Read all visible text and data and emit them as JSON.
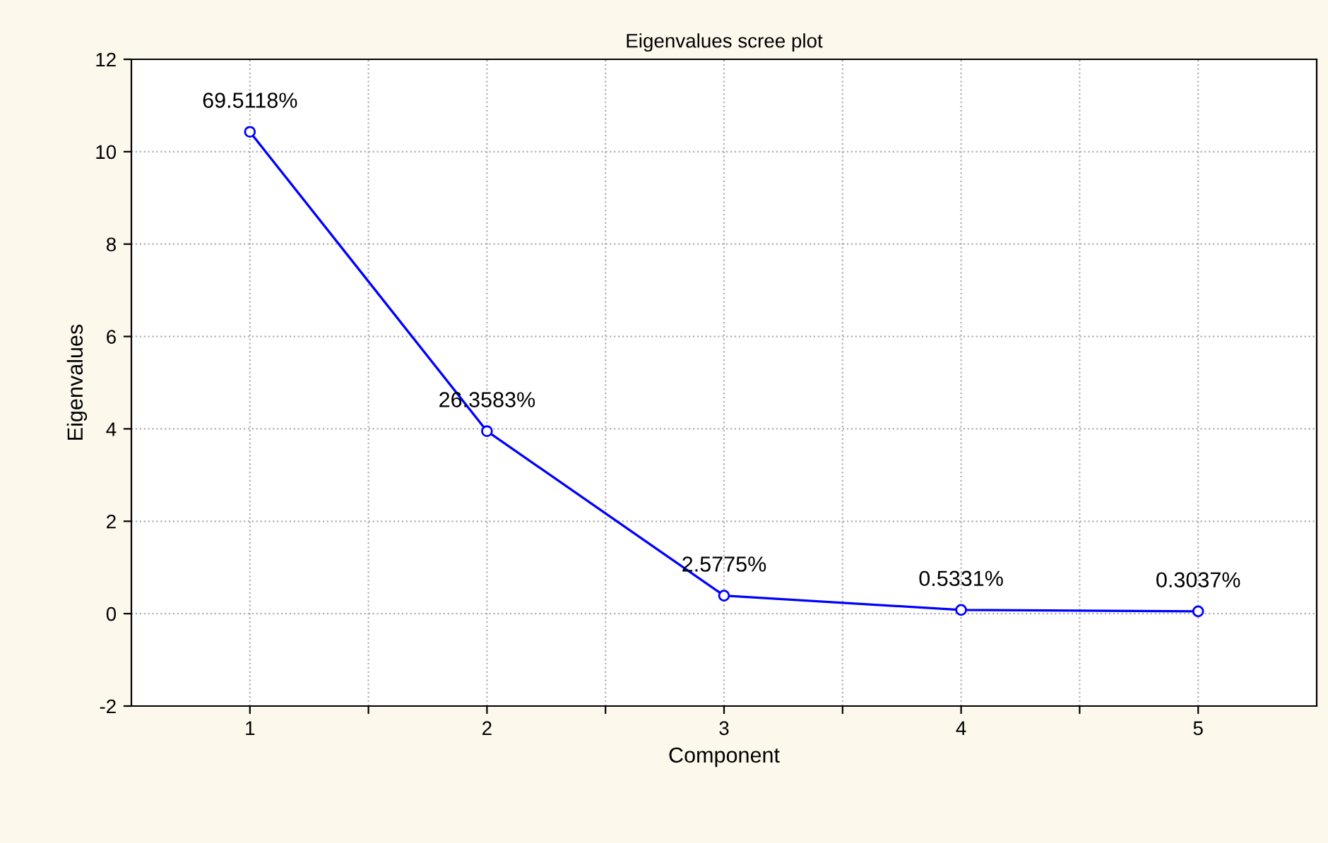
{
  "chart_data": {
    "type": "line",
    "title": "Eigenvalues scree plot",
    "xlabel": "Component",
    "ylabel": "Eigenvalues",
    "x": [
      1,
      2,
      3,
      4,
      5
    ],
    "series": [
      {
        "color": "#0000ff",
        "values": [
          10.43,
          3.95,
          0.39,
          0.08,
          0.05
        ]
      }
    ],
    "annotations": [
      {
        "text": "69.5118%",
        "x": 1,
        "y": 10.43
      },
      {
        "text": "26.3583%",
        "x": 2,
        "y": 3.95
      },
      {
        "text": "2.5775%",
        "x": 3,
        "y": 0.39
      },
      {
        "text": "0.5331%",
        "x": 4,
        "y": 0.08
      },
      {
        "text": "0.3037%",
        "x": 5,
        "y": 0.05
      }
    ],
    "xlim": [
      0.5,
      5.5
    ],
    "ylim": [
      -2,
      12
    ],
    "xticks": [
      1,
      {
        "value": 1.5,
        "label": null
      },
      2,
      {
        "value": 2.5,
        "label": null
      },
      3,
      {
        "value": 3.5,
        "label": null
      },
      4,
      {
        "value": 4.5,
        "label": null
      },
      5
    ],
    "yticks": [
      -2,
      0,
      2,
      4,
      6,
      8,
      10,
      12
    ],
    "grid": true,
    "marker": "circle",
    "line_style": "solid"
  }
}
